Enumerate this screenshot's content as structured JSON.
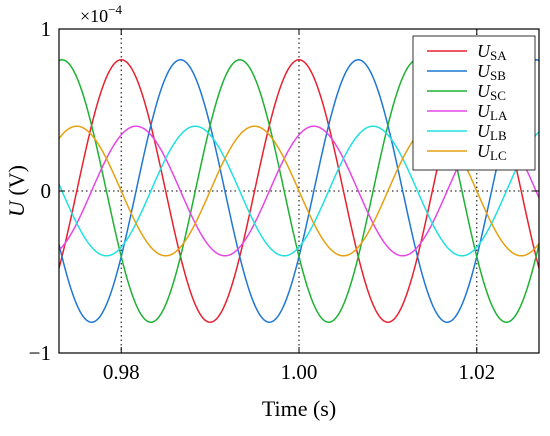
{
  "chart_data": {
    "type": "line",
    "xlabel": "Time (s)",
    "ylabel_main": "U",
    "ylabel_unit": " (V)",
    "exponent_label": "×10",
    "exponent_power": "−4",
    "xlim": [
      0.973,
      1.027
    ],
    "ylim": [
      -1,
      1
    ],
    "x_ticks": [
      {
        "value": 0.98,
        "label": "0.98"
      },
      {
        "value": 1.0,
        "label": "1.00"
      },
      {
        "value": 1.02,
        "label": "1.02"
      }
    ],
    "y_ticks": [
      {
        "value": 1,
        "label": "1"
      },
      {
        "value": 0,
        "label": "0"
      },
      {
        "value": -1,
        "label": "−1"
      }
    ],
    "grid": "dotted",
    "legend_position": "top-right",
    "frequency_hz": 50,
    "series": [
      {
        "name_main": "U",
        "name_sub": "SA",
        "amplitude": 0.81,
        "phase_deg": 0,
        "color": "#e8212f"
      },
      {
        "name_main": "U",
        "name_sub": "SB",
        "amplitude": 0.81,
        "phase_deg": -120,
        "color": "#1f77d4"
      },
      {
        "name_main": "U",
        "name_sub": "SC",
        "amplitude": 0.81,
        "phase_deg": 120,
        "color": "#1db233"
      },
      {
        "name_main": "U",
        "name_sub": "LA",
        "amplitude": 0.4,
        "phase_deg": -30,
        "color": "#e646e6"
      },
      {
        "name_main": "U",
        "name_sub": "LB",
        "amplitude": 0.4,
        "phase_deg": -150,
        "color": "#22e0e0"
      },
      {
        "name_main": "U",
        "name_sub": "LC",
        "amplitude": 0.4,
        "phase_deg": 90,
        "color": "#e6a010"
      }
    ]
  }
}
